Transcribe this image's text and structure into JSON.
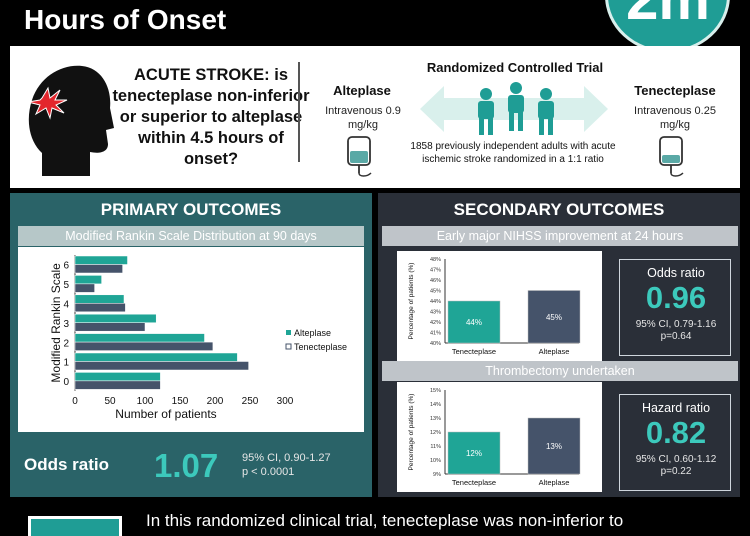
{
  "header": {
    "title": "Hours of Onset",
    "logo_text": "2m"
  },
  "intro": {
    "question": "ACUTE STROKE: is tenecteplase non-inferior or superior to alteplase within 4.5 hours of onset?",
    "trial_title": "Randomized Controlled Trial",
    "alteplase_title": "Alteplase",
    "alteplase_dose": "Intravenous 0.9 mg/kg",
    "tenecteplase_title": "Tenecteplase",
    "tenecteplase_dose": "Intravenous 0.25 mg/kg",
    "trial_description": "1858 previously independent adults with acute ischemic stroke randomized in a 1:1 ratio"
  },
  "colors": {
    "primary_panel": "#2a6368",
    "secondary_panel": "#2a2f38",
    "accent": "#3cc9bc",
    "alteplase_bar": "#1fa596",
    "tenecteplase_bar": "#45536a"
  },
  "primary": {
    "title": "PRIMARY OUTCOMES",
    "chart_subtitle": "Modified Rankin Scale Distribution at 90 days",
    "odds_label": "Odds ratio",
    "odds_value": "1.07",
    "odds_ci": "95% CI, 0.90-1.27",
    "odds_p": "p < 0.0001"
  },
  "secondary": {
    "title": "SECONDARY OUTCOMES",
    "nihss_subtitle": "Early major NIHSS improvement at 24 hours",
    "nihss_stat_label": "Odds ratio",
    "nihss_stat_value": "0.96",
    "nihss_ci": "95% CI, 0.79-1.16",
    "nihss_p": "p=0.64",
    "thromb_subtitle": "Thrombectomy undertaken",
    "thromb_stat_label": "Hazard ratio",
    "thromb_stat_value": "0.82",
    "thromb_ci": "95% CI, 0.60-1.12",
    "thromb_p": "p=0.22"
  },
  "conclusion": {
    "text": "In this randomized clinical trial, tenecteplase was non-inferior to"
  },
  "chart_data": [
    {
      "type": "bar",
      "orientation": "horizontal",
      "categories": [
        "0",
        "1",
        "2",
        "3",
        "4",
        "5",
        "6"
      ],
      "series": [
        {
          "name": "Alteplase",
          "values": [
            122,
            232,
            185,
            116,
            70,
            38,
            75
          ]
        },
        {
          "name": "Tenecteplase",
          "values": [
            122,
            248,
            197,
            100,
            72,
            28,
            68
          ]
        }
      ],
      "xlabel": "Number of patients",
      "ylabel": "Modified Rankin Scale",
      "xticks": [
        "0",
        "50",
        "100",
        "150",
        "200",
        "250",
        "300"
      ],
      "xlim": [
        0,
        300
      ],
      "legend_position": "right"
    },
    {
      "type": "bar",
      "categories": [
        "Tenecteplase",
        "Alteplase"
      ],
      "values": [
        44,
        45
      ],
      "data_labels": [
        "44%",
        "45%"
      ],
      "ylabel": "Percentage of patients (%)",
      "yticks": [
        "40%",
        "41%",
        "42%",
        "43%",
        "44%",
        "45%",
        "46%",
        "47%",
        "48%"
      ],
      "ylim": [
        40,
        48
      ]
    },
    {
      "type": "bar",
      "categories": [
        "Tenecteplase",
        "Alteplase"
      ],
      "values": [
        12,
        13
      ],
      "data_labels": [
        "12%",
        "13%"
      ],
      "ylabel": "Percentage of patients (%)",
      "yticks": [
        "9%",
        "10%",
        "11%",
        "12%",
        "13%",
        "14%",
        "15%"
      ],
      "ylim": [
        9,
        15
      ]
    }
  ]
}
